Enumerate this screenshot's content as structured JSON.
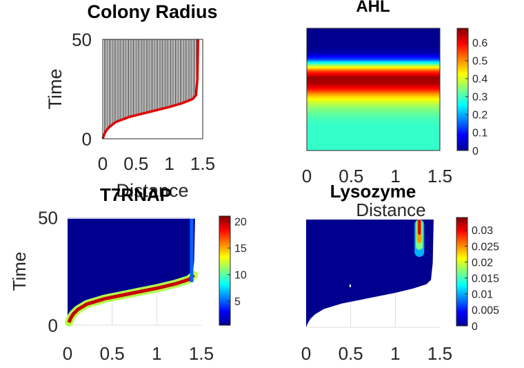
{
  "figure": {
    "background": "#ffffff"
  },
  "chart_data": [
    {
      "id": "radius",
      "type": "line",
      "title": "Colony Radius",
      "xlabel": "Distance",
      "ylabel": "Time",
      "xlim": [
        0,
        1.5
      ],
      "ylim": [
        0,
        50
      ],
      "xticks": [
        "0",
        "0.5",
        "1",
        "1.5"
      ],
      "yticks": [
        "0",
        "50"
      ],
      "grid": false,
      "series": [
        {
          "style": "thin black contour lines",
          "color": "#000000",
          "count": 60
        },
        {
          "style": "thick colony boundary",
          "color": "#e00000",
          "x": [
            0,
            0.02,
            0.05,
            0.1,
            0.2,
            0.4,
            0.7,
            1.0,
            1.2,
            1.35,
            1.4,
            1.42,
            1.43
          ],
          "y": [
            0,
            2,
            4,
            6,
            8.5,
            11,
            13.5,
            16,
            18,
            20,
            22,
            30,
            50
          ]
        }
      ]
    },
    {
      "id": "ahl",
      "type": "heatmap",
      "title": "AHL",
      "xlabel": "Distance",
      "ylabel": "",
      "xlim": [
        0,
        1.5
      ],
      "xticks": [
        "0",
        "0.5",
        "1",
        "1.5"
      ],
      "colormap": "jet",
      "clim": [
        0,
        0.68
      ],
      "colorbar_ticks": [
        "0",
        "0.1",
        "0.2",
        "0.3",
        "0.4",
        "0.5",
        "0.6"
      ],
      "profile_top_to_bottom": [
        0.01,
        0.01,
        0.01,
        0.01,
        0.03,
        0.12,
        0.35,
        0.55,
        0.66,
        0.65,
        0.58,
        0.47,
        0.4,
        0.35,
        0.32,
        0.3,
        0.29,
        0.29,
        0.29,
        0.29,
        0.29
      ]
    },
    {
      "id": "t7rnap",
      "type": "heatmap",
      "title": "T7RNAP",
      "xlabel": "",
      "ylabel": "Time",
      "xlim": [
        0,
        1.5
      ],
      "ylim": [
        0,
        50
      ],
      "xticks": [
        "0",
        "0.5",
        "1",
        "1.5"
      ],
      "yticks": [
        "0",
        "50"
      ],
      "colormap": "jet",
      "clim": [
        0.5,
        21
      ],
      "colorbar_ticks": [
        "5",
        "10",
        "15",
        "20"
      ]
    },
    {
      "id": "lysozyme",
      "type": "heatmap",
      "title": "Lysozyme",
      "xlabel": "",
      "ylabel": "",
      "xlim": [
        0,
        1.5
      ],
      "ylim": [
        0,
        50
      ],
      "xticks": [
        "0",
        "0.5",
        "1",
        "1.5"
      ],
      "colormap": "jet",
      "clim": [
        0,
        0.034
      ],
      "colorbar_ticks": [
        "0",
        "0.005",
        "0.01",
        "0.015",
        "0.02",
        "0.025",
        "0.03"
      ]
    }
  ]
}
